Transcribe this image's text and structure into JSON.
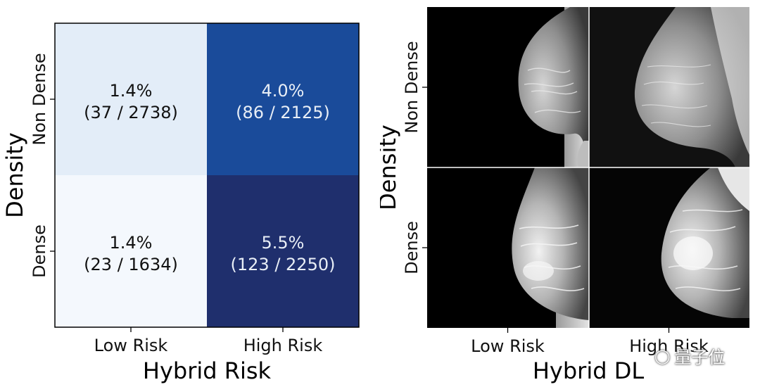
{
  "chart_data": [
    {
      "type": "heatmap",
      "title": "",
      "xlabel": "Hybrid Risk",
      "ylabel": "Density",
      "x_categories": [
        "Low Risk",
        "High Risk"
      ],
      "y_categories": [
        "Non Dense",
        "Dense"
      ],
      "cells": [
        {
          "row": 0,
          "col": 0,
          "percent": "1.4%",
          "counts": "(37 / 2738)",
          "value": 1.4,
          "color": "#e3edf8",
          "text_color": "#111111"
        },
        {
          "row": 0,
          "col": 1,
          "percent": "4.0%",
          "counts": "(86 / 2125)",
          "value": 4.0,
          "color": "#1a4b9a",
          "text_color": "#e8eef6"
        },
        {
          "row": 1,
          "col": 0,
          "percent": "1.4%",
          "counts": "(23 / 1634)",
          "value": 1.4,
          "color": "#f4f8fd",
          "text_color": "#111111"
        },
        {
          "row": 1,
          "col": 1,
          "percent": "5.5%",
          "counts": "(123 / 2250)",
          "value": 5.5,
          "color": "#1f2f6d",
          "text_color": "#e8eef6"
        }
      ]
    },
    {
      "type": "image-grid",
      "xlabel": "Hybrid DL",
      "ylabel": "Density",
      "x_categories": [
        "Low Risk",
        "High Risk"
      ],
      "y_categories": [
        "Non Dense",
        "Dense"
      ],
      "images": [
        {
          "row": 0,
          "col": 0,
          "depicts": "mammogram-low-risk-non-dense"
        },
        {
          "row": 0,
          "col": 1,
          "depicts": "mammogram-high-risk-non-dense"
        },
        {
          "row": 1,
          "col": 0,
          "depicts": "mammogram-low-risk-dense"
        },
        {
          "row": 1,
          "col": 1,
          "depicts": "mammogram-high-risk-dense"
        }
      ]
    }
  ],
  "watermark": {
    "text": "量子位"
  }
}
